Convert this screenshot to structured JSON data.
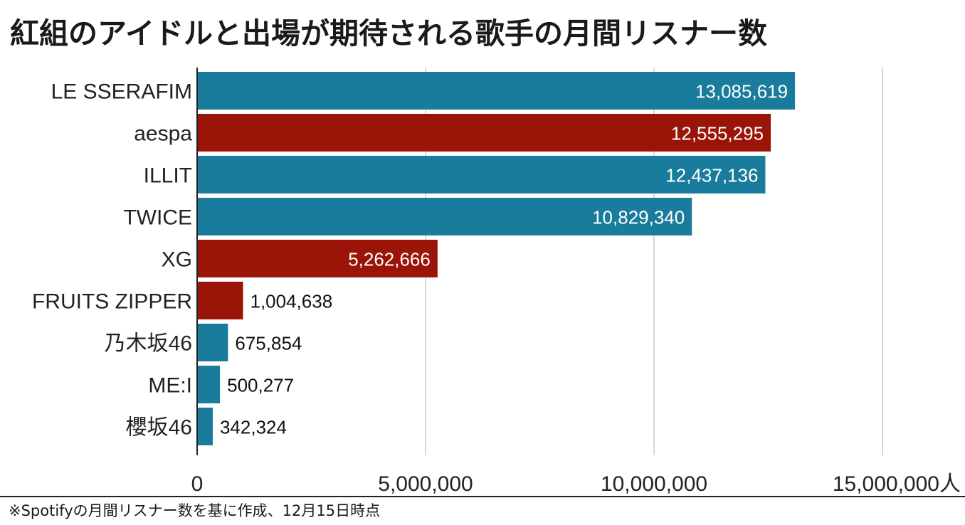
{
  "title": "紅組のアイドルと出場が期待される歌手の月間リスナー数",
  "footnote": "※Spotifyの月間リスナー数を基に作成、12月15日時点",
  "colors": {
    "blue": "#1a7c9c",
    "red": "#9b1408",
    "grid": "#cccccc",
    "axis": "#222222"
  },
  "chart_data": {
    "type": "bar",
    "orientation": "horizontal",
    "categories": [
      "LE SSERAFIM",
      "aespa",
      "ILLIT",
      "TWICE",
      "XG",
      "FRUITS ZIPPER",
      "乃木坂46",
      "ME:I",
      "櫻坂46"
    ],
    "values": [
      13085619,
      12555295,
      12437136,
      10829340,
      5262666,
      1004638,
      675854,
      500277,
      342324
    ],
    "value_labels": [
      "13,085,619",
      "12,555,295",
      "12,437,136",
      "10,829,340",
      "5,262,666",
      "1,004,638",
      "675,854",
      "500,277",
      "342,324"
    ],
    "bar_colors": [
      "blue",
      "red",
      "blue",
      "blue",
      "red",
      "red",
      "blue",
      "blue",
      "blue"
    ],
    "xlim": [
      0,
      15000000
    ],
    "xticks": [
      0,
      5000000,
      10000000,
      15000000
    ],
    "xtick_labels": [
      "0",
      "5,000,000",
      "10,000,000",
      "15,000,000人"
    ],
    "grid": true,
    "xlabel": "",
    "ylabel": ""
  }
}
